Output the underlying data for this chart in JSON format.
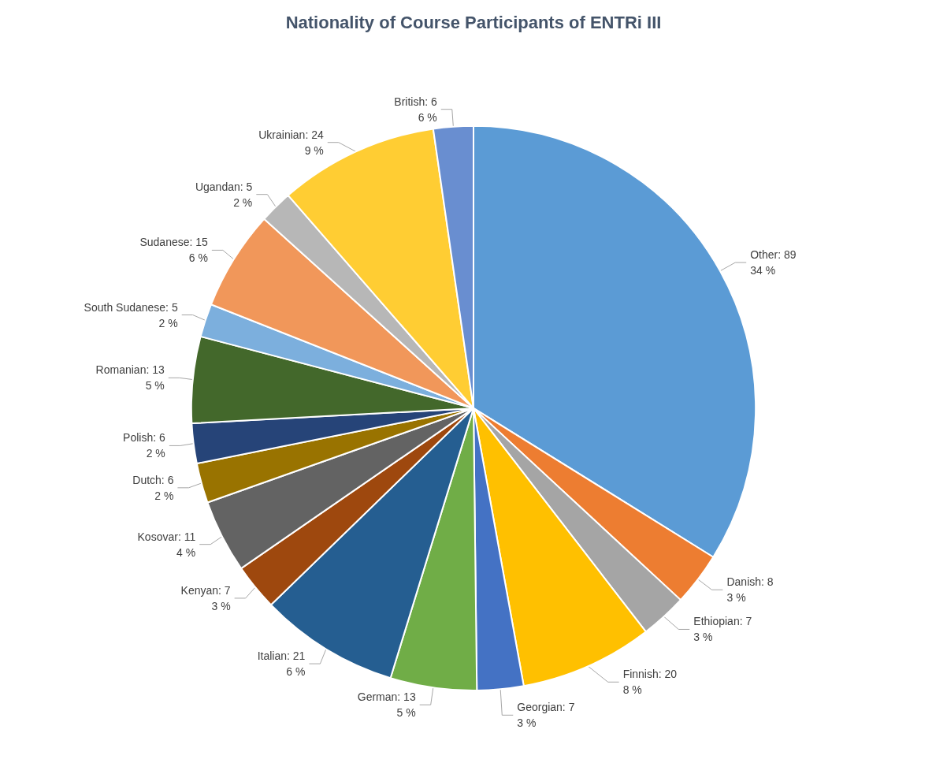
{
  "chart_data": {
    "type": "pie",
    "title": "Nationality of Course Participants of ENTRi III",
    "categories": [
      "Other",
      "Danish",
      "Ethiopian",
      "Finnish",
      "Georgian",
      "German",
      "Italian",
      "Kenyan",
      "Kosovar",
      "Dutch",
      "Polish",
      "Romanian",
      "South Sudanese",
      "Sudanese",
      "Ugandan",
      "Ukrainian",
      "British"
    ],
    "values": [
      89,
      8,
      7,
      20,
      7,
      13,
      21,
      7,
      11,
      6,
      6,
      13,
      5,
      15,
      5,
      24,
      6
    ],
    "value_labels": [
      "89\n34 %",
      "8\n3 %",
      "7\n3 %",
      "20\n8 %",
      "7\n3 %",
      "13\n5 %",
      "21\n6 %",
      "7\n3 %",
      "11\n4 %",
      "6\n2 %",
      "6\n2 %",
      "13\n5 %",
      "5\n2 %",
      "15\n6 %",
      "5\n2 %",
      "24\n9 %",
      "6\n6 %"
    ],
    "colors": [
      "#5b9bd5",
      "#ed7d31",
      "#a5a5a5",
      "#ffc000",
      "#4472c4",
      "#70ad47",
      "#255e91",
      "#9e480e",
      "#636363",
      "#997300",
      "#264478",
      "#43682b",
      "#7cafdd",
      "#f1975a",
      "#b7b7b7",
      "#ffcd33",
      "#698ed0"
    ],
    "legend": false
  }
}
